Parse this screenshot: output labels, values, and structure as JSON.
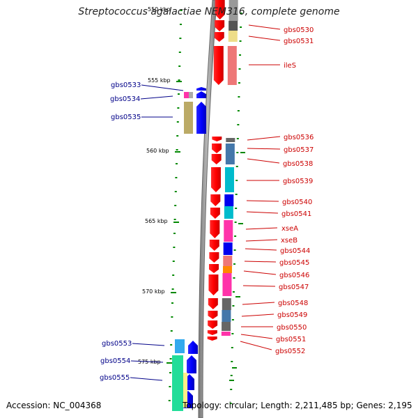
{
  "title": "Streptococcus agalactiae NEM316, complete genome",
  "accession": "Accession: NC_004368",
  "topology": "Topology: circular; Length: 2,211,485 bp; Genes: 2,195",
  "scale": {
    "top_mark": "550 kbp",
    "marks": [
      "555 kbp",
      "560 kbp",
      "565 kbp",
      "570 kbp",
      "575 kbp"
    ]
  },
  "genes_right": [
    "gbs0530",
    "gbs0531",
    "ileS",
    "gbs0536",
    "gbs0537",
    "gbs0538",
    "gbs0539",
    "gbs0540",
    "gbs0541",
    "xseA",
    "xseB",
    "gbs0544",
    "gbs0545",
    "gbs0546",
    "gbs0547",
    "gbs0548",
    "gbs0549",
    "gbs0550",
    "gbs0551",
    "gbs0552"
  ],
  "genes_left": [
    "gbs0533",
    "gbs0534",
    "gbs0535",
    "gbs0553",
    "gbs0554",
    "gbs0555"
  ],
  "colors": {
    "forward_strand": "#0000ee",
    "reverse_strand": "#ee0000",
    "label_right": "#cc0000",
    "label_left": "#000088",
    "ticks": "#008800",
    "backbone": "#888888"
  }
}
